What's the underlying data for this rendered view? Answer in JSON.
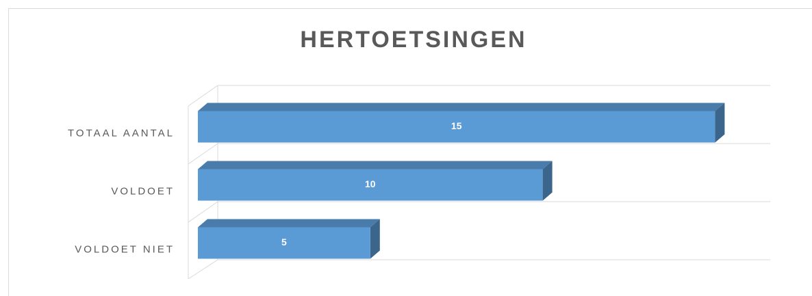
{
  "chart_data": {
    "type": "bar3d_horizontal",
    "title": "HERTOETSINGEN",
    "categories": [
      "TOTAAL AANTAL",
      "VOLDOET",
      "VOLDOET NIET"
    ],
    "values": [
      15,
      10,
      5
    ],
    "color": "#5b9bd5",
    "xlim": [
      0,
      16.6
    ],
    "grid": true
  }
}
